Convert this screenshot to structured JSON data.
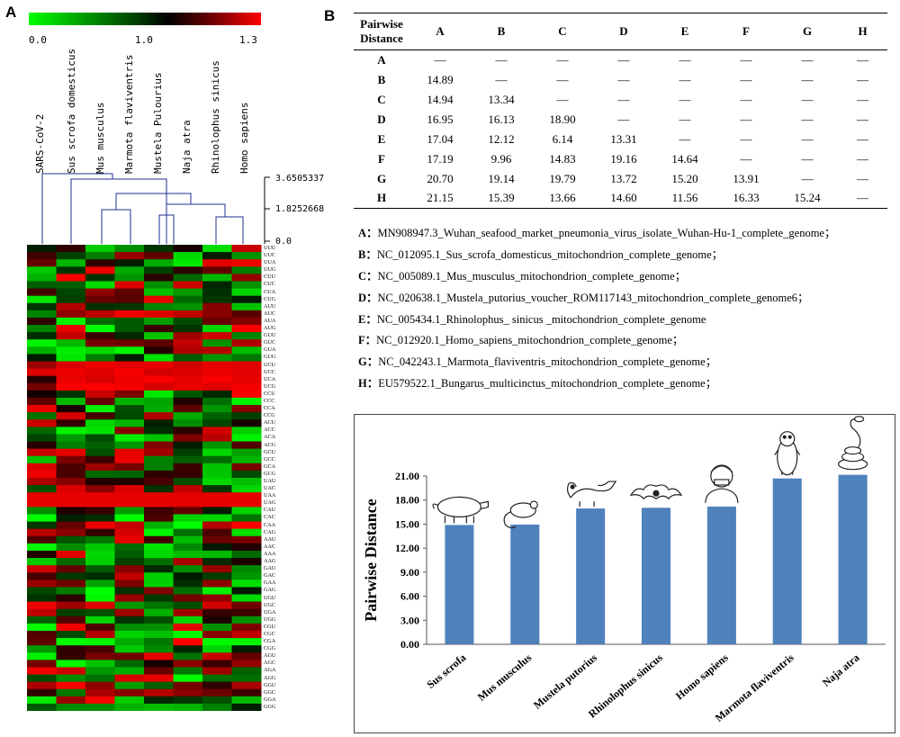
{
  "panel_a": {
    "label": "A",
    "colorbar": {
      "min": "0.0",
      "mid": "1.0",
      "max": "1.3"
    },
    "species": [
      "SARS-CoV-2",
      "Sus scrofa domesticus",
      "Mus musculus",
      "Marmota flaviventris",
      "Mustela Pulourius",
      "Naja atra",
      "Rhinolophus sinicus",
      "Homo sapiens"
    ],
    "tree_scale": [
      "3.6505337",
      "1.8252668",
      "0.0"
    ],
    "codons": [
      "UUU",
      "UUC",
      "UUA",
      "UUG",
      "CUU",
      "CUC",
      "CUA",
      "CUG",
      "AUU",
      "AUC",
      "AUA",
      "AUG",
      "GUU",
      "GUC",
      "GUA",
      "GUG",
      "UCU",
      "UCC",
      "UCA",
      "UCG",
      "CCU",
      "CCC",
      "CCA",
      "CCG",
      "ACU",
      "ACC",
      "ACA",
      "ACG",
      "GCU",
      "GCC",
      "GCA",
      "GCG",
      "UAU",
      "UAC",
      "UAA",
      "UAG",
      "CAU",
      "CAC",
      "CAA",
      "CAG",
      "AAU",
      "AAC",
      "AAA",
      "AAG",
      "GAU",
      "GAC",
      "GAA",
      "GAG",
      "UGU",
      "UGC",
      "UGA",
      "UGG",
      "CGU",
      "CGC",
      "CGA",
      "CGG",
      "AGU",
      "AGC",
      "AGA",
      "AGG",
      "GGU",
      "GGC",
      "GGA",
      "GGG"
    ]
  },
  "panel_b": {
    "label": "B",
    "table": {
      "header_line1": "Pairwise",
      "header_line2": "Distance",
      "columns": [
        "A",
        "B",
        "C",
        "D",
        "E",
        "F",
        "G",
        "H"
      ],
      "dash": "—",
      "rows": [
        {
          "id": "A",
          "values": []
        },
        {
          "id": "B",
          "values": [
            "14.89"
          ]
        },
        {
          "id": "C",
          "values": [
            "14.94",
            "13.34"
          ]
        },
        {
          "id": "D",
          "values": [
            "16.95",
            "16.13",
            "18.90"
          ]
        },
        {
          "id": "E",
          "values": [
            "17.04",
            "12.12",
            "6.14",
            "13.31"
          ]
        },
        {
          "id": "F",
          "values": [
            "17.19",
            "9.96",
            "14.83",
            "19.16",
            "14.64"
          ]
        },
        {
          "id": "G",
          "values": [
            "20.70",
            "19.14",
            "19.79",
            "13.72",
            "15.20",
            "13.91"
          ]
        },
        {
          "id": "H",
          "values": [
            "21.15",
            "15.39",
            "13.66",
            "14.60",
            "11.56",
            "16.33",
            "15.24"
          ]
        }
      ]
    },
    "legend": [
      {
        "key": "A：",
        "text": "MN908947.3_Wuhan_seafood_market_pneumonia_virus_isolate_Wuhan-Hu-1_complete_genome；"
      },
      {
        "key": "B：",
        "text": "NC_012095.1_Sus_scrofa_domesticus_mitochondrion_complete_genome；"
      },
      {
        "key": "C：",
        "text": "NC_005089.1_Mus_musculus_mitochondrion_complete_genome；"
      },
      {
        "key": "D：",
        "text": "NC_020638.1_Mustela_putorius_voucher_ROM117143_mitochondrion_complete_genome6；"
      },
      {
        "key": "E：",
        "text": "NC_005434.1_Rhinolophus_ sinicus _mitochondrion_complete_genome"
      },
      {
        "key": "F：",
        "text": "NC_012920.1_Homo_sapiens_mitochondrion_complete_genome；"
      },
      {
        "key": "G：",
        "text": "NC_042243.1_Marmota_flaviventris_mitochondrion_complete_genome；"
      },
      {
        "key": "H：",
        "text": "EU579522.1_Bungarus_multicinctus_mitochondrion_complete_genome；"
      }
    ]
  },
  "chart_data": {
    "type": "bar",
    "title": "",
    "xlabel": "",
    "ylabel": "Pairwise  Distance",
    "categories": [
      "Sus scrofa",
      "Mus musculus",
      "Mustela putorius",
      "Rhinolophus sinicus",
      "Homo sapiens",
      "Marmota flaviventris",
      "Naja atra"
    ],
    "values": [
      14.89,
      14.94,
      16.95,
      17.04,
      17.19,
      20.7,
      21.15
    ],
    "yticks": [
      "0.00",
      "3.00",
      "6.00",
      "9.00",
      "12.00",
      "15.00",
      "18.00",
      "21.00"
    ],
    "ylim": [
      0,
      21
    ],
    "bar_color": "#4f81bd",
    "animal_icons": [
      "pig-icon",
      "mouse-icon",
      "ferret-icon",
      "bat-icon",
      "human-icon",
      "marmot-icon",
      "snake-icon"
    ]
  }
}
